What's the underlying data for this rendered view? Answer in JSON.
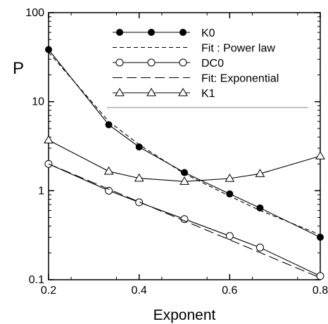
{
  "chart_data": {
    "type": "line",
    "xlabel": "Exponent",
    "ylabel": "P",
    "xlim": [
      0.2,
      0.8
    ],
    "ylim": [
      0.1,
      100
    ],
    "yscale": "log",
    "grid": false,
    "legend_position": "top-right",
    "x_ticks": [
      "0.2",
      "0.4",
      "0.6",
      "0.8"
    ],
    "y_ticks": [
      "0.1",
      "1",
      "10",
      "100"
    ],
    "series": [
      {
        "name": "K0",
        "style": "solid-filled-circle",
        "x": [
          0.2,
          0.333,
          0.4,
          0.5,
          0.6,
          0.667,
          0.8
        ],
        "y": [
          38.5,
          5.5,
          3.1,
          1.6,
          0.92,
          0.64,
          0.3
        ]
      },
      {
        "name": "Fit : Power law",
        "style": "dashed",
        "x": [
          0.2,
          0.333,
          0.4,
          0.5,
          0.6,
          0.667,
          0.8
        ],
        "y": [
          36.0,
          6.0,
          3.3,
          1.55,
          0.87,
          0.6,
          0.32
        ]
      },
      {
        "name": "DC0",
        "style": "solid-open-circle",
        "x": [
          0.2,
          0.333,
          0.4,
          0.5,
          0.6,
          0.667,
          0.8
        ],
        "y": [
          2.0,
          1.0,
          0.74,
          0.48,
          0.31,
          0.23,
          0.11
        ]
      },
      {
        "name": "Fit: Exponential",
        "style": "long-dash",
        "x": [
          0.2,
          0.8
        ],
        "y": [
          2.0,
          0.105
        ]
      },
      {
        "name": "K1",
        "style": "solid-open-triangle",
        "x": [
          0.2,
          0.333,
          0.4,
          0.5,
          0.6,
          0.667,
          0.8
        ],
        "y": [
          3.7,
          1.65,
          1.38,
          1.27,
          1.37,
          1.55,
          2.45
        ]
      }
    ]
  }
}
